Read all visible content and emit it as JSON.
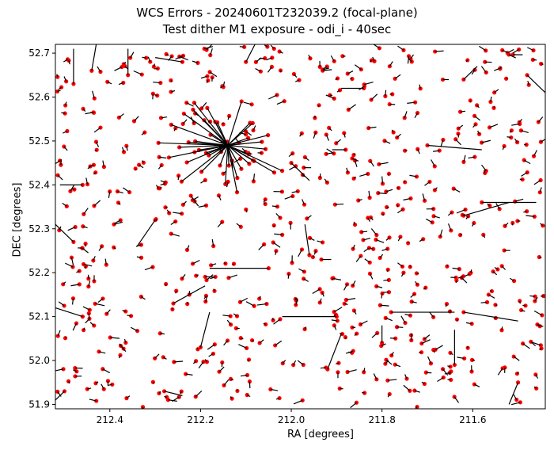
{
  "chart_data": {
    "type": "scatter",
    "title": "WCS Errors - 20240601T232039.2 (focal-plane)",
    "subtitle": "Test dither M1 exposure - odi_i - 40sec",
    "xlabel": "RA [degrees]",
    "ylabel": "DEC [degrees]",
    "xlim": [
      212.52,
      211.44
    ],
    "ylim": [
      51.89,
      52.72
    ],
    "x_inverted": true,
    "xticks": [
      "212.4",
      "212.2",
      "212.0",
      "211.8",
      "211.6"
    ],
    "yticks": [
      "51.9",
      "52.0",
      "52.1",
      "52.2",
      "52.3",
      "52.4",
      "52.5",
      "52.6",
      "52.7"
    ],
    "grid": false,
    "marker_color": "#ff0000",
    "vector_color": "#000000",
    "cluster_center": {
      "ra": 212.14,
      "dec": 52.49
    },
    "points": [
      {
        "ra": 212.48,
        "dec": 52.63,
        "dra": 0.0,
        "ddec": 0.08
      },
      {
        "ra": 212.44,
        "dec": 52.66,
        "dra": -0.01,
        "ddec": 0.06
      },
      {
        "ra": 212.36,
        "dec": 52.65,
        "dra": 0.0,
        "ddec": 0.06
      },
      {
        "ra": 212.24,
        "dec": 52.68,
        "dra": 0.06,
        "ddec": 0.01
      },
      {
        "ra": 212.1,
        "dec": 52.68,
        "dra": -0.02,
        "ddec": 0.05
      },
      {
        "ra": 211.84,
        "dec": 52.62,
        "dra": 0.05,
        "ddec": 0.0
      },
      {
        "ra": 211.62,
        "dec": 52.64,
        "dra": -0.03,
        "ddec": 0.03
      },
      {
        "ra": 211.48,
        "dec": 52.65,
        "dra": -0.04,
        "ddec": -0.04
      },
      {
        "ra": 212.46,
        "dec": 52.4,
        "dra": 0.05,
        "ddec": 0.0
      },
      {
        "ra": 212.48,
        "dec": 52.27,
        "dra": 0.12,
        "ddec": 0.04
      },
      {
        "ra": 212.3,
        "dec": 52.32,
        "dra": 0.04,
        "ddec": -0.06
      },
      {
        "ra": 211.96,
        "dec": 52.24,
        "dra": 0.01,
        "ddec": 0.07
      },
      {
        "ra": 211.88,
        "dec": 52.48,
        "dra": 0.03,
        "ddec": 0.0
      },
      {
        "ra": 211.7,
        "dec": 52.49,
        "dra": -0.12,
        "ddec": -0.01
      },
      {
        "ra": 211.58,
        "dec": 52.36,
        "dra": -0.12,
        "ddec": 0.0
      },
      {
        "ra": 211.62,
        "dec": 52.33,
        "dra": -0.1,
        "ddec": 0.03
      },
      {
        "ra": 212.05,
        "dec": 52.21,
        "dra": 0.13,
        "ddec": 0.0
      },
      {
        "ra": 211.9,
        "dec": 52.1,
        "dra": 0.12,
        "ddec": 0.0
      },
      {
        "ra": 211.78,
        "dec": 52.11,
        "dra": -0.14,
        "ddec": 0.0
      },
      {
        "ra": 211.62,
        "dec": 52.11,
        "dra": -0.12,
        "ddec": -0.02
      },
      {
        "ra": 212.46,
        "dec": 52.1,
        "dra": 0.07,
        "ddec": 0.02
      },
      {
        "ra": 212.26,
        "dec": 52.13,
        "dra": -0.07,
        "ddec": 0.04
      },
      {
        "ra": 212.2,
        "dec": 52.03,
        "dra": -0.02,
        "ddec": 0.08
      },
      {
        "ra": 212.28,
        "dec": 51.93,
        "dra": -0.04,
        "ddec": -0.01
      },
      {
        "ra": 212.5,
        "dec": 51.93,
        "dra": 0.05,
        "ddec": -0.02
      },
      {
        "ra": 211.92,
        "dec": 51.98,
        "dra": -0.03,
        "ddec": 0.08
      },
      {
        "ra": 211.64,
        "dec": 51.99,
        "dra": 0.0,
        "ddec": 0.08
      },
      {
        "ra": 211.5,
        "dec": 51.95,
        "dra": 0.02,
        "ddec": -0.05
      },
      {
        "ra": 211.8,
        "dec": 52.04,
        "dra": 0.0,
        "ddec": 0.04
      },
      {
        "ra": 212.0,
        "dec": 52.45,
        "dra": -0.04,
        "ddec": -0.04
      }
    ],
    "background_density": 620
  }
}
